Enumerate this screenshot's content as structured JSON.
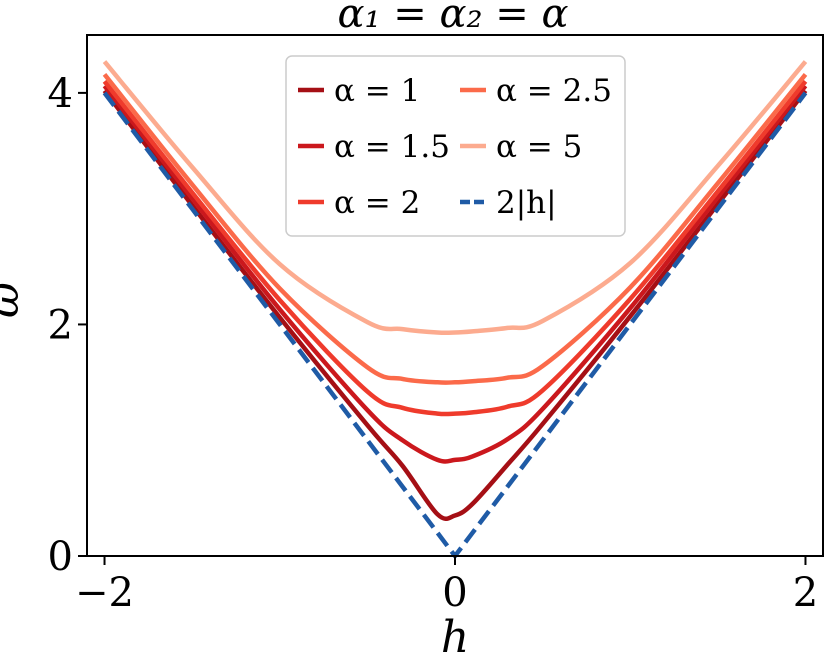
{
  "chart_data": {
    "type": "line",
    "title": "α₁ = α₂ = α",
    "xlabel": "h",
    "ylabel": "ω̄",
    "xlim": [
      -2.1,
      2.1
    ],
    "ylim": [
      0,
      4.5
    ],
    "xticks": [
      -2,
      0,
      2
    ],
    "xtick_labels": [
      "−2",
      "0",
      "2"
    ],
    "yticks": [
      0,
      2,
      4
    ],
    "ytick_labels": [
      "0",
      "2",
      "4"
    ],
    "grid": false,
    "legend_position": "top-center",
    "x": [
      -2.0,
      -1.5,
      -1.0,
      -0.5,
      -0.3,
      -0.1,
      0.0,
      0.1,
      0.3,
      0.5,
      1.0,
      1.5,
      2.0
    ],
    "series": [
      {
        "name": "α = 1",
        "color": "#a50f15",
        "style": "solid",
        "values": [
          4.02,
          3.03,
          2.06,
          1.13,
          0.78,
          0.36,
          0.35,
          0.45,
          0.79,
          1.14,
          2.07,
          3.04,
          4.02
        ]
      },
      {
        "name": "α = 1.5",
        "color": "#cb181d",
        "style": "solid",
        "values": [
          4.06,
          3.09,
          2.13,
          1.26,
          1.0,
          0.83,
          0.83,
          0.86,
          1.01,
          1.27,
          2.14,
          3.1,
          4.06
        ]
      },
      {
        "name": "α = 2",
        "color": "#ef3b2c",
        "style": "solid",
        "values": [
          4.1,
          3.14,
          2.21,
          1.42,
          1.28,
          1.23,
          1.23,
          1.24,
          1.29,
          1.43,
          2.22,
          3.15,
          4.1
        ]
      },
      {
        "name": "α = 2.5",
        "color": "#fb6a4a",
        "style": "solid",
        "values": [
          4.16,
          3.21,
          2.31,
          1.63,
          1.53,
          1.5,
          1.5,
          1.51,
          1.54,
          1.64,
          2.32,
          3.22,
          4.16
        ]
      },
      {
        "name": "α = 5",
        "color": "#fcab8f",
        "style": "solid",
        "values": [
          4.27,
          3.36,
          2.52,
          2.02,
          1.96,
          1.93,
          1.93,
          1.94,
          1.97,
          2.03,
          2.53,
          3.37,
          4.27
        ]
      },
      {
        "name": "2|h|",
        "color": "#1f5ba6",
        "style": "dashed",
        "values": [
          4.0,
          3.0,
          2.0,
          1.0,
          0.6,
          0.2,
          0.0,
          0.2,
          0.6,
          1.0,
          2.0,
          3.0,
          4.0
        ]
      }
    ]
  }
}
